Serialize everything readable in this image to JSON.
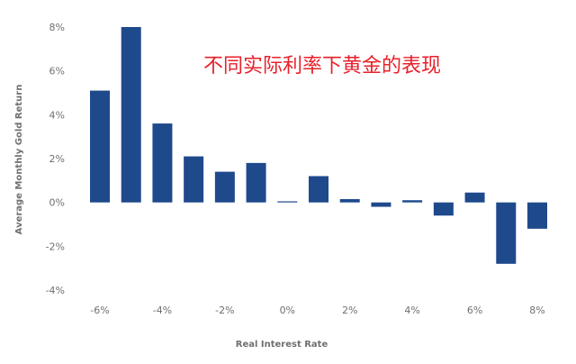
{
  "chart_data": {
    "type": "bar",
    "title": "不同实际利率下黄金的表现",
    "xlabel": "Real Interest Rate",
    "ylabel": "Average Monthly Gold Return",
    "bar_color": "#1e4a8c",
    "title_color": "#e8202a",
    "axis_text_color": "#6f7070",
    "grid": false,
    "ylim": [
      -4,
      8
    ],
    "yticks": [
      -4,
      -2,
      0,
      2,
      4,
      6,
      8
    ],
    "ytick_labels": [
      "-4%",
      "-2%",
      "0%",
      "2%",
      "4%",
      "6%",
      "8%"
    ],
    "xlim": [
      -6,
      8
    ],
    "xticks": [
      -6,
      -4,
      -2,
      0,
      2,
      4,
      6,
      8
    ],
    "xtick_labels": [
      "-6%",
      "-4%",
      "-2%",
      "0%",
      "2%",
      "4%",
      "6%",
      "8%"
    ],
    "bins": [
      -6,
      -5,
      -4,
      -3,
      -2,
      -1,
      0,
      1,
      2,
      3,
      4,
      5,
      6,
      7,
      8
    ],
    "values": [
      5.1,
      8.0,
      3.6,
      2.1,
      1.4,
      1.8,
      0.05,
      1.2,
      0.15,
      -0.2,
      0.1,
      -0.6,
      0.45,
      -2.8,
      -1.2
    ]
  }
}
